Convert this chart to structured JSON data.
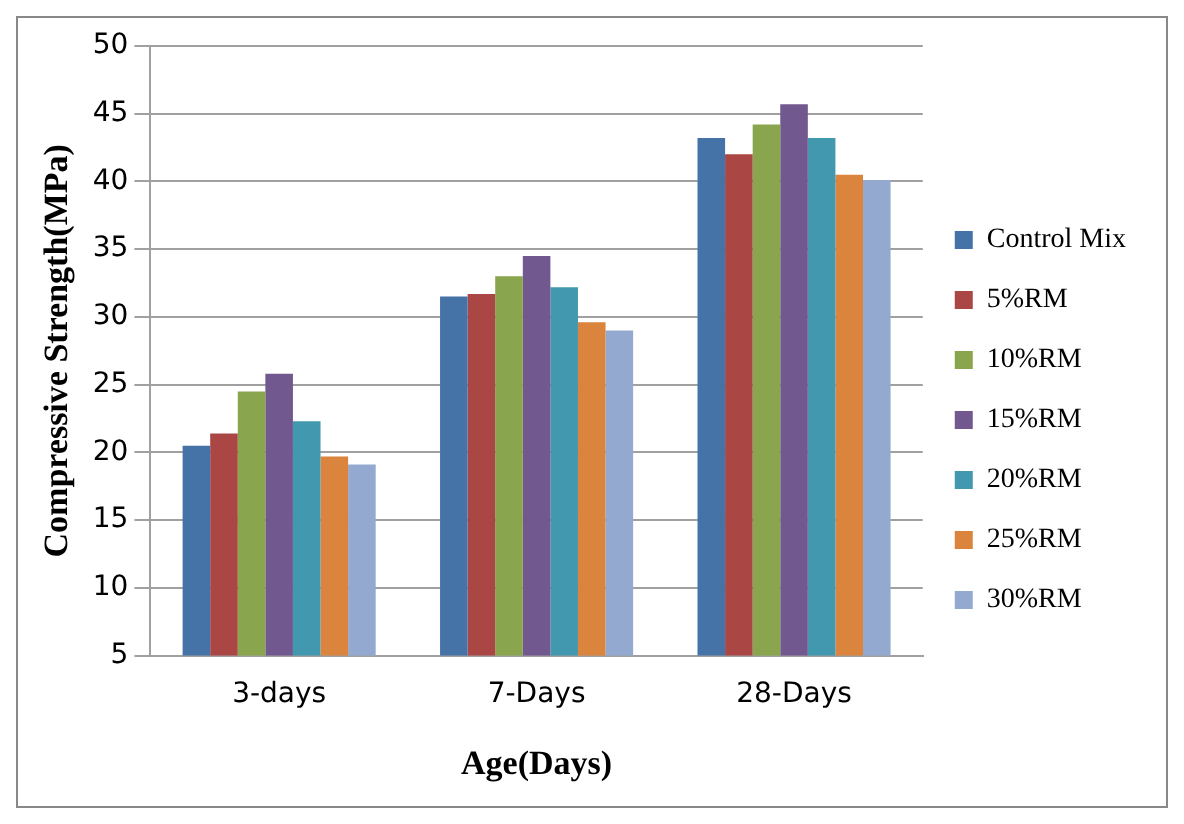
{
  "chart_data": {
    "type": "bar",
    "xlabel": "Age(Days)",
    "ylabel": "Compressive Strength(MPa)",
    "categories": [
      "3-days",
      "7-Days",
      "28-Days"
    ],
    "series": [
      {
        "name": "Control Mix",
        "color": "#4572a7",
        "values": [
          20.5,
          31.5,
          43.2
        ]
      },
      {
        "name": "5%RM",
        "color": "#aa4643",
        "values": [
          21.4,
          31.7,
          42.0
        ]
      },
      {
        "name": "10%RM",
        "color": "#89a54e",
        "values": [
          24.5,
          33.0,
          44.2
        ]
      },
      {
        "name": "15%RM",
        "color": "#71588f",
        "values": [
          25.8,
          34.5,
          45.7
        ]
      },
      {
        "name": "20%RM",
        "color": "#4198af",
        "values": [
          22.3,
          32.2,
          43.2
        ]
      },
      {
        "name": "25%RM",
        "color": "#db843d",
        "values": [
          19.7,
          29.6,
          40.5
        ]
      },
      {
        "name": "30%RM",
        "color": "#93a9cf",
        "values": [
          19.1,
          29.0,
          40.1
        ]
      }
    ],
    "ylim": [
      5,
      50
    ],
    "yticks": [
      5,
      10,
      15,
      20,
      25,
      30,
      35,
      40,
      45,
      50
    ],
    "grid": "y",
    "legend": "right"
  }
}
